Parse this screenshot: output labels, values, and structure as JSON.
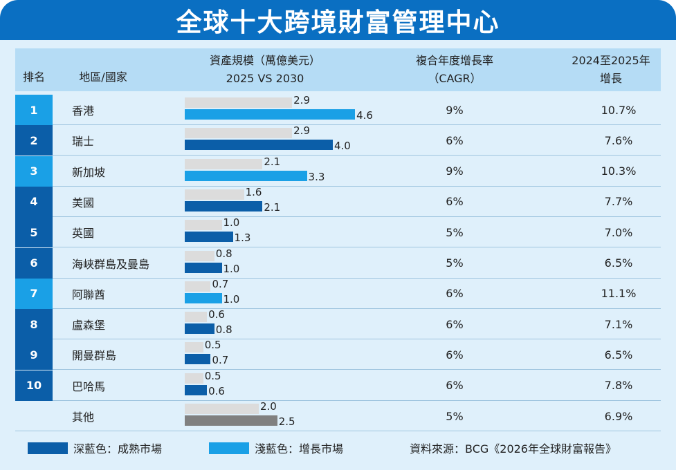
{
  "title": "全球十大跨境財富管理中心",
  "header": {
    "rank": "排名",
    "region": "地區/國家",
    "assets_line1": "資產規模（萬億美元）",
    "assets_line2": "2025  VS  2030",
    "cagr_line1": "複合年度增長率",
    "cagr_line2": "（CAGR）",
    "growth_line1": "2024至2025年",
    "growth_line2": "增長"
  },
  "colors": {
    "mature": "#0b5ea8",
    "growth": "#1aa0e6",
    "other": "#808080",
    "base_2025": "#dcdcdc"
  },
  "chart_data": {
    "type": "bar",
    "xlabel": "",
    "ylabel": "",
    "series_labels": [
      "2025",
      "2030"
    ],
    "rows": [
      {
        "rank": "1",
        "region": "香港",
        "v2025": 2.9,
        "v2030": 4.6,
        "v2025_label": "2.9",
        "v2030_label": "4.6",
        "cagr": "9%",
        "growth": "10.7%",
        "market": "growth"
      },
      {
        "rank": "2",
        "region": "瑞士",
        "v2025": 2.9,
        "v2030": 4.0,
        "v2025_label": "2.9",
        "v2030_label": "4.0",
        "cagr": "6%",
        "growth": "7.6%",
        "market": "mature"
      },
      {
        "rank": "3",
        "region": "新加坡",
        "v2025": 2.1,
        "v2030": 3.3,
        "v2025_label": "2.1",
        "v2030_label": "3.3",
        "cagr": "9%",
        "growth": "10.3%",
        "market": "growth"
      },
      {
        "rank": "4",
        "region": "美國",
        "v2025": 1.6,
        "v2030": 2.1,
        "v2025_label": "1.6",
        "v2030_label": "2.1",
        "cagr": "6%",
        "growth": "7.7%",
        "market": "mature"
      },
      {
        "rank": "5",
        "region": "英國",
        "v2025": 1.0,
        "v2030": 1.3,
        "v2025_label": "1.0",
        "v2030_label": "1.3",
        "cagr": "5%",
        "growth": "7.0%",
        "market": "mature"
      },
      {
        "rank": "6",
        "region": "海峽群島及曼島",
        "v2025": 0.8,
        "v2030": 1.0,
        "v2025_label": "0.8",
        "v2030_label": "1.0",
        "cagr": "5%",
        "growth": "6.5%",
        "market": "mature"
      },
      {
        "rank": "7",
        "region": "阿聯酋",
        "v2025": 0.7,
        "v2030": 1.0,
        "v2025_label": "0.7",
        "v2030_label": "1.0",
        "cagr": "6%",
        "growth": "11.1%",
        "market": "growth"
      },
      {
        "rank": "8",
        "region": "盧森堡",
        "v2025": 0.6,
        "v2030": 0.8,
        "v2025_label": "0.6",
        "v2030_label": "0.8",
        "cagr": "6%",
        "growth": "7.1%",
        "market": "mature"
      },
      {
        "rank": "9",
        "region": "開曼群島",
        "v2025": 0.5,
        "v2030": 0.7,
        "v2025_label": "0.5",
        "v2030_label": "0.7",
        "cagr": "6%",
        "growth": "6.5%",
        "market": "mature"
      },
      {
        "rank": "10",
        "region": "巴哈馬",
        "v2025": 0.5,
        "v2030": 0.6,
        "v2025_label": "0.5",
        "v2030_label": "0.6",
        "cagr": "6%",
        "growth": "7.8%",
        "market": "mature"
      },
      {
        "rank": "",
        "region": "其他",
        "v2025": 2.0,
        "v2030": 2.5,
        "v2025_label": "2.0",
        "v2030_label": "2.5",
        "cagr": "5%",
        "growth": "6.9%",
        "market": "other"
      }
    ]
  },
  "legend": {
    "mature": "深藍色：成熟市場",
    "growth": "淺藍色：增長市場",
    "source": "資料來源：BCG《2026年全球財富報告》"
  }
}
